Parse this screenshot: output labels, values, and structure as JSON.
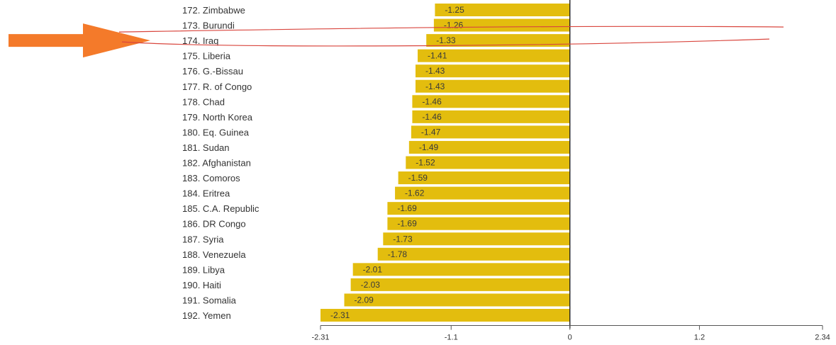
{
  "chart_data": {
    "type": "bar",
    "orientation": "horizontal",
    "title": "",
    "xlabel": "",
    "ylabel": "",
    "categories": [
      "172. Zimbabwe",
      "173. Burundi",
      "174. Iraq",
      "175. Liberia",
      "176. G.-Bissau",
      "177. R. of Congo",
      "178. Chad",
      "179. North Korea",
      "180. Eq. Guinea",
      "181. Sudan",
      "182. Afghanistan",
      "183. Comoros",
      "184. Eritrea",
      "185. C.A. Republic",
      "186. DR Congo",
      "187. Syria",
      "188. Venezuela",
      "189. Libya",
      "190. Haiti",
      "191. Somalia",
      "192. Yemen"
    ],
    "values": [
      -1.25,
      -1.26,
      -1.33,
      -1.41,
      -1.43,
      -1.43,
      -1.46,
      -1.46,
      -1.47,
      -1.49,
      -1.52,
      -1.59,
      -1.62,
      -1.69,
      -1.69,
      -1.73,
      -1.78,
      -2.01,
      -2.03,
      -2.09,
      -2.31
    ],
    "value_labels": [
      "-1.25",
      "-1.26",
      "-1.33",
      "-1.41",
      "-1.43",
      "-1.43",
      "-1.46",
      "-1.46",
      "-1.47",
      "-1.49",
      "-1.52",
      "-1.59",
      "-1.62",
      "-1.69",
      "-1.69",
      "-1.73",
      "-1.78",
      "-2.01",
      "-2.03",
      "-2.09",
      "-2.31"
    ],
    "xlim": [
      -2.31,
      2.34
    ],
    "xticks": [
      -2.31,
      -1.1,
      0,
      1.2,
      2.34
    ],
    "xtick_labels": [
      "-2.31",
      "-1.1",
      "0",
      "1.2",
      "2.34"
    ],
    "grid": false,
    "bar_color": "#e3bd0e",
    "highlight": {
      "category": "174. Iraq",
      "arrow_color": "#f47a2a",
      "outline_color": "#d9463e"
    }
  }
}
